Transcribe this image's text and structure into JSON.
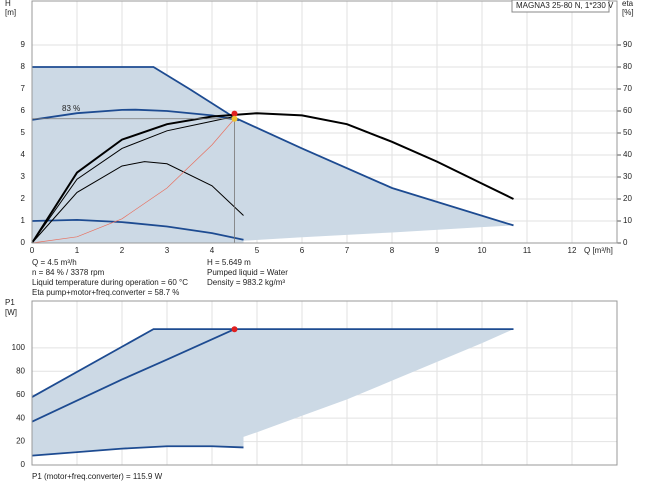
{
  "chart_data": [
    {
      "type": "line",
      "title": "MAGNA3 25-80 N, 1*230 V",
      "y_label_top": "H",
      "y_label_unit": "[m]",
      "y2_label_top": "eta",
      "y2_label_unit": "[%]",
      "x_label": "Q [m³/h]",
      "annotation": "83 %",
      "xlim": [
        0,
        13
      ],
      "xticks": [
        0,
        1,
        2,
        3,
        4,
        5,
        6,
        7,
        8,
        9,
        10,
        11,
        12
      ],
      "ylim": [
        0,
        11
      ],
      "yticks": [
        0,
        1,
        2,
        3,
        4,
        5,
        6,
        7,
        8,
        9
      ],
      "y2lim": [
        0,
        110
      ],
      "y2ticks": [
        0,
        10,
        20,
        30,
        40,
        50,
        60,
        70,
        80,
        90
      ],
      "grid": true,
      "areas": [
        {
          "color": "#ccd9e5",
          "x": [
            0,
            2.7,
            3.5,
            4.5,
            6,
            8,
            10.7,
            10,
            8,
            6,
            4.7,
            4.7,
            0
          ],
          "values": [
            8,
            8,
            7,
            5.7,
            4.3,
            2.5,
            0.8,
            0.72,
            0.48,
            0.26,
            0.1,
            0,
            0
          ]
        }
      ],
      "series": [
        {
          "color": "#1d4b91",
          "x": [
            0,
            2.7,
            3.5,
            4.5,
            6,
            8,
            10.7
          ],
          "values": [
            8,
            8,
            7,
            5.7,
            4.3,
            2.5,
            0.8
          ]
        },
        {
          "color": "#1d4b91",
          "x": [
            0,
            1,
            2,
            3,
            4,
            4.7
          ],
          "values": [
            1,
            1.05,
            0.95,
            0.75,
            0.45,
            0.15
          ]
        },
        {
          "color": "#1d4b91",
          "axis": "y2",
          "x": [
            0,
            1,
            2,
            2.3,
            3,
            4,
            4.6
          ],
          "values": [
            56,
            59,
            60.5,
            60.6,
            60,
            58,
            55.8
          ]
        },
        {
          "color": "#000000",
          "x": [
            0,
            1,
            2,
            3,
            4,
            5,
            6,
            7,
            8,
            9,
            10,
            10.7
          ],
          "values": [
            0,
            3.2,
            4.7,
            5.4,
            5.75,
            5.9,
            5.8,
            5.4,
            4.6,
            3.7,
            2.7,
            2.0
          ]
        },
        {
          "color": "#000000",
          "x": [
            0,
            1,
            2,
            3,
            4.5
          ],
          "values": [
            0,
            2.9,
            4.3,
            5.1,
            5.75
          ]
        },
        {
          "color": "#000000",
          "x": [
            0,
            1,
            2,
            2.5,
            3,
            4,
            4.7
          ],
          "values": [
            0,
            2.3,
            3.5,
            3.7,
            3.6,
            2.6,
            1.25
          ]
        },
        {
          "color": "#e8705f",
          "x": [
            0,
            1,
            2,
            3,
            4,
            4.5
          ],
          "values": [
            0,
            0.28,
            1.1,
            2.5,
            4.46,
            5.649
          ]
        }
      ],
      "points": [
        {
          "color": "#e02020",
          "x": 4.5,
          "value": 5.88
        },
        {
          "color": "#f0c030",
          "x": 4.5,
          "value": 5.649
        }
      ],
      "info": [
        "Q = 4.5 m³/h",
        "n = 84 % / 3378 rpm",
        "Liquid temperature during operation = 60 °C",
        "Eta pump+motor+freq.converter = 58.7 %"
      ],
      "info2": [
        "H = 5.649 m",
        "Pumped liquid = Water",
        "Density = 983.2 kg/m³"
      ]
    },
    {
      "type": "line",
      "y_label_top": "P1",
      "y_label_unit": "[W]",
      "xlim": [
        0,
        13
      ],
      "xticks": [
        0,
        1,
        2,
        3,
        4,
        5,
        6,
        7,
        8,
        9,
        10,
        11,
        12
      ],
      "ylim": [
        0,
        140
      ],
      "yticks": [
        0,
        20,
        40,
        60,
        80,
        100
      ],
      "grid": true,
      "areas": [
        {
          "color": "#ccd9e5",
          "x": [
            0,
            2.7,
            10.7,
            10,
            9,
            8,
            7,
            6,
            5,
            4.7,
            4.7,
            3,
            1,
            0
          ],
          "values": [
            58,
            116,
            116,
            104,
            88,
            72,
            56,
            42,
            28,
            24,
            15,
            16.5,
            12,
            8
          ]
        }
      ],
      "series": [
        {
          "color": "#1d4b91",
          "x": [
            0,
            2.7,
            10.7
          ],
          "values": [
            58,
            116,
            116
          ]
        },
        {
          "color": "#1d4b91",
          "x": [
            0,
            1,
            2,
            3,
            4.5
          ],
          "values": [
            37,
            55,
            73,
            90,
            115.9
          ]
        },
        {
          "color": "#1d4b91",
          "x": [
            0,
            1,
            2,
            3,
            4,
            4.7
          ],
          "values": [
            8,
            11,
            14,
            16,
            16,
            15
          ]
        }
      ],
      "points": [
        {
          "color": "#e02020",
          "x": 4.5,
          "value": 115.9
        }
      ],
      "info": [
        "P1 (motor+freq.converter) = 115.9 W"
      ]
    }
  ]
}
